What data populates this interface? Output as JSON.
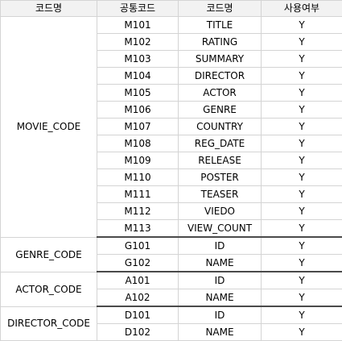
{
  "headers": [
    "코드명",
    "공통코드",
    "코드명",
    "사용여부"
  ],
  "groups": [
    {
      "name": "MOVIE_CODE",
      "rows": [
        {
          "code": "M101",
          "name": "TITLE",
          "use": "Y"
        },
        {
          "code": "M102",
          "name": "RATING",
          "use": "Y"
        },
        {
          "code": "M103",
          "name": "SUMMARY",
          "use": "Y"
        },
        {
          "code": "M104",
          "name": "DIRECTOR",
          "use": "Y"
        },
        {
          "code": "M105",
          "name": "ACTOR",
          "use": "Y"
        },
        {
          "code": "M106",
          "name": "GENRE",
          "use": "Y"
        },
        {
          "code": "M107",
          "name": "COUNTRY",
          "use": "Y"
        },
        {
          "code": "M108",
          "name": "REG_DATE",
          "use": "Y"
        },
        {
          "code": "M109",
          "name": "RELEASE",
          "use": "Y"
        },
        {
          "code": "M110",
          "name": "POSTER",
          "use": "Y"
        },
        {
          "code": "M111",
          "name": "TEASER",
          "use": "Y"
        },
        {
          "code": "M112",
          "name": "VIEDO",
          "use": "Y"
        },
        {
          "code": "M113",
          "name": "VIEW_COUNT",
          "use": "Y"
        }
      ]
    },
    {
      "name": "GENRE_CODE",
      "rows": [
        {
          "code": "G101",
          "name": "ID",
          "use": "Y"
        },
        {
          "code": "G102",
          "name": "NAME",
          "use": "Y"
        }
      ]
    },
    {
      "name": "ACTOR_CODE",
      "rows": [
        {
          "code": "A101",
          "name": "ID",
          "use": "Y"
        },
        {
          "code": "A102",
          "name": "NAME",
          "use": "Y"
        }
      ]
    },
    {
      "name": "DIRECTOR_CODE",
      "rows": [
        {
          "code": "D101",
          "name": "ID",
          "use": "Y"
        },
        {
          "code": "D102",
          "name": "NAME",
          "use": "Y"
        }
      ]
    }
  ]
}
